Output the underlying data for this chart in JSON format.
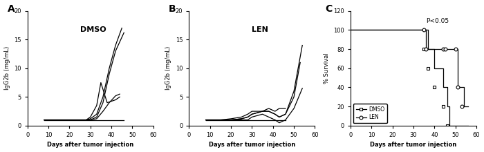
{
  "panel_A_label": "A",
  "panel_B_label": "B",
  "panel_C_label": "C",
  "dmso_label": "DMSO",
  "len_label": "LEN",
  "xlabel": "Days after tumor injection",
  "ylabel_igg": "IgG2b (mg/mL)",
  "ylabel_surv": "% Survival",
  "igg_ylim": [
    0,
    20
  ],
  "igg_yticks": [
    0,
    5,
    10,
    15,
    20
  ],
  "igg_xlim": [
    0,
    60
  ],
  "igg_xticks": [
    0,
    10,
    20,
    30,
    40,
    50,
    60
  ],
  "surv_ylim": [
    0,
    120
  ],
  "surv_yticks": [
    0,
    20,
    40,
    60,
    80,
    100,
    120
  ],
  "surv_xlim": [
    0,
    60
  ],
  "surv_xticks": [
    0,
    10,
    20,
    30,
    40,
    50,
    60
  ],
  "dmso_mice": [
    [
      8,
      10,
      15,
      20,
      25,
      28,
      30,
      33,
      36,
      39,
      42,
      45
    ],
    [
      1.0,
      1.0,
      1.0,
      1.0,
      1.0,
      1.0,
      1.2,
      2.0,
      5.0,
      10.0,
      14.0,
      17.0
    ],
    [
      8,
      10,
      15,
      20,
      25,
      28,
      30,
      33,
      36,
      39,
      42,
      46
    ],
    [
      1.0,
      1.0,
      1.0,
      1.0,
      1.0,
      1.0,
      1.0,
      1.5,
      4.0,
      9.0,
      13.0,
      16.2
    ],
    [
      8,
      10,
      15,
      20,
      25,
      28,
      30,
      33,
      36,
      39,
      42,
      44
    ],
    [
      1.0,
      1.0,
      1.0,
      1.0,
      1.0,
      1.0,
      1.0,
      1.2,
      2.5,
      4.0,
      5.2,
      5.5
    ],
    [
      8,
      10,
      15,
      20,
      25,
      28,
      30,
      33,
      35,
      38,
      42,
      44
    ],
    [
      1.0,
      1.0,
      1.0,
      1.0,
      1.0,
      1.0,
      1.5,
      3.5,
      7.5,
      4.0,
      4.5,
      5.0
    ],
    [
      8,
      10,
      15,
      20,
      25,
      28,
      30,
      33,
      36,
      39,
      42,
      46
    ],
    [
      1.0,
      1.0,
      1.0,
      1.0,
      1.0,
      1.0,
      1.0,
      1.0,
      1.0,
      1.0,
      1.0,
      1.0
    ]
  ],
  "len_mice": [
    [
      8,
      10,
      15,
      20,
      25,
      28,
      30,
      35,
      38,
      41,
      43,
      46,
      50,
      54
    ],
    [
      1.0,
      1.0,
      1.0,
      1.0,
      1.2,
      1.5,
      2.0,
      2.5,
      2.5,
      2.0,
      1.5,
      2.0,
      6.0,
      14.0
    ],
    [
      8,
      10,
      15,
      20,
      25,
      28,
      30,
      35,
      38,
      41,
      43,
      46,
      50,
      53
    ],
    [
      1.0,
      1.0,
      1.0,
      1.0,
      1.2,
      1.5,
      2.0,
      2.5,
      2.5,
      2.0,
      1.5,
      2.0,
      5.0,
      11.0
    ],
    [
      8,
      10,
      15,
      20,
      25,
      28,
      30,
      35,
      38,
      41,
      43,
      46,
      50,
      54
    ],
    [
      1.0,
      1.0,
      1.0,
      1.0,
      1.0,
      1.0,
      1.5,
      2.0,
      1.5,
      1.0,
      0.5,
      1.0,
      3.0,
      6.5
    ],
    [
      8,
      10,
      15,
      20,
      25,
      28,
      30,
      35,
      38,
      41,
      43,
      46
    ],
    [
      1.0,
      1.0,
      1.0,
      1.2,
      1.5,
      2.0,
      2.5,
      2.5,
      3.0,
      2.5,
      3.0,
      3.0
    ],
    [
      8,
      10,
      15,
      20,
      25,
      28,
      30,
      35,
      38,
      41,
      43,
      46
    ],
    [
      1.0,
      1.0,
      1.0,
      1.0,
      1.0,
      1.0,
      1.0,
      1.0,
      1.0,
      1.0,
      1.0,
      1.0
    ]
  ],
  "dmso_survival": {
    "steps_x": [
      0,
      35,
      37,
      40,
      44,
      46,
      47,
      56
    ],
    "steps_y": [
      100,
      100,
      80,
      60,
      40,
      20,
      0,
      0
    ],
    "marker_x": [
      35,
      37,
      40,
      44,
      46
    ],
    "marker_y": [
      80,
      60,
      40,
      20,
      0
    ]
  },
  "len_survival": {
    "steps_x": [
      0,
      35,
      36,
      44,
      45,
      50,
      51,
      53,
      54,
      56
    ],
    "steps_y": [
      100,
      100,
      80,
      80,
      80,
      80,
      40,
      40,
      20,
      20
    ],
    "marker_x": [
      35,
      36,
      44,
      45,
      50,
      51,
      53
    ],
    "marker_y": [
      100,
      80,
      80,
      80,
      80,
      40,
      20
    ]
  },
  "pvalue_text": "P<0.05",
  "legend_dmso": "DMSO",
  "legend_len": "LEN",
  "line_color": "#000000",
  "bg_color": "#ffffff"
}
